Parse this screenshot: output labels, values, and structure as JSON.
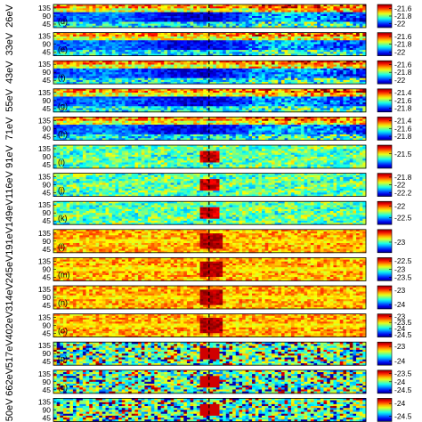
{
  "chart_data": {
    "type": "heatmap",
    "colormap": "jet",
    "dashed_center_line": true,
    "y_ticks": [
      "135",
      "90",
      "45"
    ],
    "panels": [
      {
        "energy": "26eV",
        "letter": "(d)",
        "cbar_ticks": [
          "-21.6",
          "-21.8",
          "-22"
        ],
        "clim": [
          -22.1,
          -21.5
        ],
        "pattern": "low"
      },
      {
        "energy": "33eV",
        "letter": "(e)",
        "cbar_ticks": [
          "-21.6",
          "-21.8",
          "-22"
        ],
        "clim": [
          -22.1,
          -21.5
        ],
        "pattern": "low"
      },
      {
        "energy": "43eV",
        "letter": "(f)",
        "cbar_ticks": [
          "-21.6",
          "-21.8",
          "-22"
        ],
        "clim": [
          -22.1,
          -21.5
        ],
        "pattern": "low"
      },
      {
        "energy": "55eV",
        "letter": "(g)",
        "cbar_ticks": [
          "-21.4",
          "-21.6",
          "-21.8"
        ],
        "clim": [
          -21.9,
          -21.3
        ],
        "pattern": "low"
      },
      {
        "energy": "71eV",
        "letter": "(h)",
        "cbar_ticks": [
          "-21.4",
          "-21.6",
          "-21.8"
        ],
        "clim": [
          -21.9,
          -21.3
        ],
        "pattern": "low"
      },
      {
        "energy": "91eV",
        "letter": "(i)",
        "cbar_ticks": [
          "-21.5"
        ],
        "clim": [
          -22.0,
          -21.2
        ],
        "pattern": "mid"
      },
      {
        "energy": "116eV",
        "letter": "(j)",
        "cbar_ticks": [
          "-21.8",
          "-22",
          "-22.2"
        ],
        "clim": [
          -22.3,
          -21.7
        ],
        "pattern": "mid"
      },
      {
        "energy": "149eV",
        "letter": "(k)",
        "cbar_ticks": [
          "-22",
          "-22.5"
        ],
        "clim": [
          -22.8,
          -21.8
        ],
        "pattern": "mid"
      },
      {
        "energy": "191eV",
        "letter": "(l)",
        "cbar_ticks": [
          "-23"
        ],
        "clim": [
          -23.5,
          -22.4
        ],
        "pattern": "high"
      },
      {
        "energy": "245eV",
        "letter": "(m)",
        "cbar_ticks": [
          "-22.5",
          "-23",
          "-23.5"
        ],
        "clim": [
          -23.7,
          -22.3
        ],
        "pattern": "high"
      },
      {
        "energy": "314eV",
        "letter": "(n)",
        "cbar_ticks": [
          "-23",
          "-24"
        ],
        "clim": [
          -24.3,
          -22.7
        ],
        "pattern": "high"
      },
      {
        "energy": "402eV",
        "letter": "(o)",
        "cbar_ticks": [
          "-23",
          "-23.5",
          "-24",
          "-24.5"
        ],
        "clim": [
          -24.7,
          -22.8
        ],
        "pattern": "high"
      },
      {
        "energy": "517eV",
        "letter": "(p)",
        "cbar_ticks": [
          "-23",
          "-24"
        ],
        "clim": [
          -24.3,
          -22.7
        ],
        "pattern": "noisy"
      },
      {
        "energy": "662eV",
        "letter": "(q)",
        "cbar_ticks": [
          "-23.5",
          "-24",
          "-24.5"
        ],
        "clim": [
          -24.7,
          -23.3
        ],
        "pattern": "noisy"
      },
      {
        "energy": "50eV",
        "letter": "",
        "cbar_ticks": [
          "-24",
          "-24.5"
        ],
        "clim": [
          -24.7,
          -23.8
        ],
        "pattern": "noisy"
      }
    ]
  }
}
